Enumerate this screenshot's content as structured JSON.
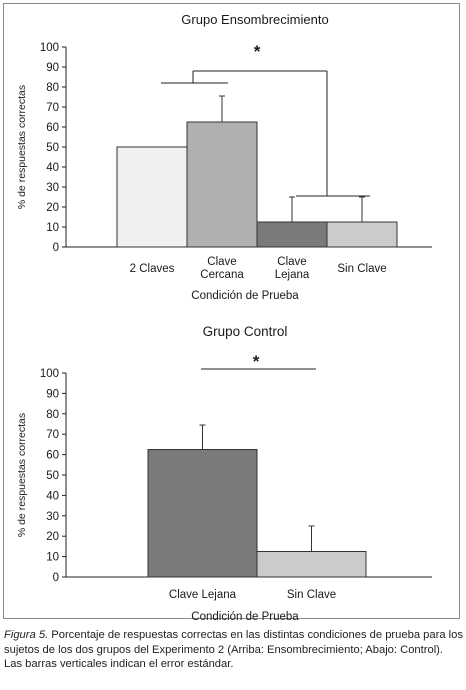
{
  "chart_data": [
    {
      "type": "bar",
      "title": "Grupo Ensombrecimiento",
      "xlabel": "Condición de Prueba",
      "ylabel": "% de respuestas correctas",
      "ylim": [
        0,
        100
      ],
      "yticks": [
        0,
        10,
        20,
        30,
        40,
        50,
        60,
        70,
        80,
        90,
        100
      ],
      "categories": [
        [
          "2 Claves"
        ],
        [
          "Clave",
          "Cercana"
        ],
        [
          "Clave",
          "Lejana"
        ],
        [
          "Sin Clave"
        ]
      ],
      "values": [
        50,
        62.5,
        12.5,
        12.5
      ],
      "errors": [
        0,
        13,
        12.5,
        12.5
      ],
      "colors": [
        "#f0f0f0",
        "#b0b0b0",
        "#7a7a7a",
        "#cbcbcb"
      ],
      "significance": "*",
      "grid": false
    },
    {
      "type": "bar",
      "title": "Grupo Control",
      "xlabel": "Condición de Prueba",
      "ylabel": "% de respuestas correctas",
      "ylim": [
        0,
        100
      ],
      "yticks": [
        0,
        10,
        20,
        30,
        40,
        50,
        60,
        70,
        80,
        90,
        100
      ],
      "categories": [
        [
          "Clave Lejana"
        ],
        [
          "Sin Clave"
        ]
      ],
      "values": [
        62.5,
        12.5
      ],
      "errors": [
        12,
        12.5
      ],
      "colors": [
        "#7a7a7a",
        "#cbcbcb"
      ],
      "significance": "*",
      "grid": false
    }
  ],
  "caption": {
    "figure_label": "Figura 5.",
    "text": " Porcentaje de respuestas correctas en las distintas condiciones de prueba para los sujetos de los dos grupos del Experimento 2 (Arriba: Ensombrecimiento; Abajo: Control). Las barras verticales indican el error estándar."
  }
}
